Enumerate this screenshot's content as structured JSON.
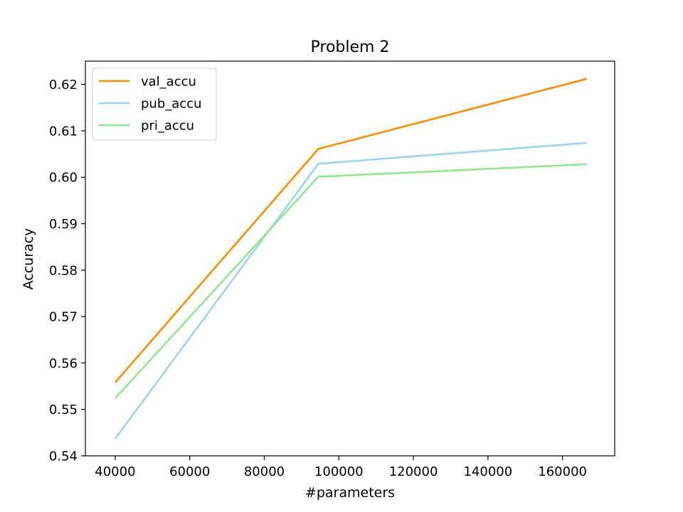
{
  "chart_data": {
    "type": "line",
    "title": "Problem 2",
    "xlabel": "#parameters",
    "ylabel": "Accuracy",
    "xlim": [
      32000,
      174000
    ],
    "ylim": [
      0.54,
      0.625
    ],
    "xticks": [
      40000,
      60000,
      80000,
      100000,
      120000,
      140000,
      160000
    ],
    "yticks": [
      0.54,
      0.55,
      0.56,
      0.57,
      0.58,
      0.59,
      0.6,
      0.61,
      0.62
    ],
    "ytick_labels": [
      "0.54",
      "0.55",
      "0.56",
      "0.57",
      "0.58",
      "0.59",
      "0.60",
      "0.61",
      "0.62"
    ],
    "x": [
      40000,
      94500,
      166500
    ],
    "series": [
      {
        "name": "val_accu",
        "color": "#ff8c00",
        "values": [
          0.5558,
          0.6061,
          0.6212
        ]
      },
      {
        "name": "pub_accu",
        "color": "#9dd4eb",
        "values": [
          0.5437,
          0.6029,
          0.6074
        ]
      },
      {
        "name": "pri_accu",
        "color": "#8fe88f",
        "values": [
          0.5524,
          0.6001,
          0.6028
        ]
      }
    ],
    "grid": false,
    "legend_position": "top-left"
  }
}
